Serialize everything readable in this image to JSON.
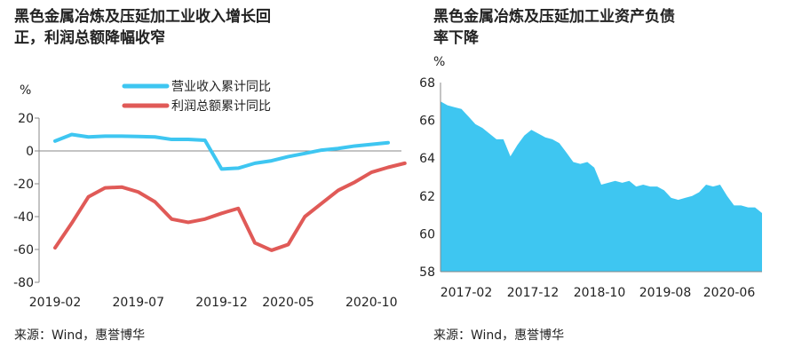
{
  "left": {
    "title_line1": "黑色金属冶炼及压延加工业收入增长回",
    "title_line2": "正，利润总额降幅收窄",
    "source": "来源：Wind，惠誉博华"
  },
  "right": {
    "title_line1": "黑色金属冶炼及压延加工业资产负债",
    "title_line2": "率下降",
    "source": "来源：Wind，惠誉博华"
  },
  "colors": {
    "revenue": "#3ec6f1",
    "profit": "#e05a57",
    "area": "#3ec6f1",
    "axis": "#888888"
  },
  "chart_data": [
    {
      "type": "line",
      "ylabel": "%",
      "ylim": [
        -80,
        20
      ],
      "yticks": [
        "20",
        "0",
        "-20",
        "-40",
        "-60",
        "-80"
      ],
      "x": [
        "2019-02",
        "2019-03",
        "2019-04",
        "2019-05",
        "2019-06",
        "2019-07",
        "2019-08",
        "2019-09",
        "2019-10",
        "2019-11",
        "2019-12",
        "2020-02",
        "2020-03",
        "2020-04",
        "2020-05",
        "2020-06",
        "2020-07",
        "2020-08",
        "2020-09",
        "2020-10",
        "2020-11",
        "2020-12"
      ],
      "xtick_labels": [
        "2019-02",
        "2019-07",
        "2019-12",
        "2020-05",
        "2020-10"
      ],
      "legend_position": "top-right",
      "series": [
        {
          "name": "营业收入累计同比",
          "color": "#3ec6f1",
          "values": [
            6,
            10,
            8.5,
            9,
            9,
            8.8,
            8.5,
            7,
            7,
            6.5,
            -11,
            -10.5,
            -7.5,
            -6,
            -3.5,
            -1.5,
            0.5,
            1.5,
            3,
            4,
            5,
            null
          ]
        },
        {
          "name": "利润总额累计同比",
          "color": "#e05a57",
          "values": [
            -59,
            -44,
            -28,
            -22.5,
            -22,
            -25,
            -31,
            -41.5,
            -43.5,
            -41.5,
            -38,
            -35,
            -56,
            -60.5,
            -57,
            -40,
            -32,
            -24,
            -19,
            -13,
            -10,
            -7.5
          ]
        }
      ]
    },
    {
      "type": "area",
      "ylabel": "%",
      "ylim": [
        58,
        68
      ],
      "yticks": [
        "68",
        "66",
        "64",
        "62",
        "60",
        "58"
      ],
      "xtick_labels": [
        "2017-02",
        "2017-12",
        "2018-10",
        "2019-08",
        "2020-06"
      ],
      "series": [
        {
          "values": [
            67,
            66.8,
            66.7,
            66.6,
            66.2,
            65.8,
            65.6,
            65.3,
            65,
            65,
            64.1,
            64.7,
            65.2,
            65.5,
            65.3,
            65.1,
            65,
            64.8,
            64.3,
            63.8,
            63.7,
            63.8,
            63.5,
            62.6,
            62.7,
            62.8,
            62.7,
            62.8,
            62.5,
            62.6,
            62.5,
            62.5,
            62.3,
            61.9,
            61.8,
            61.9,
            62,
            62.2,
            62.6,
            62.5,
            62.6,
            62,
            61.5,
            61.5,
            61.4,
            61.4,
            61.1
          ]
        }
      ]
    }
  ]
}
